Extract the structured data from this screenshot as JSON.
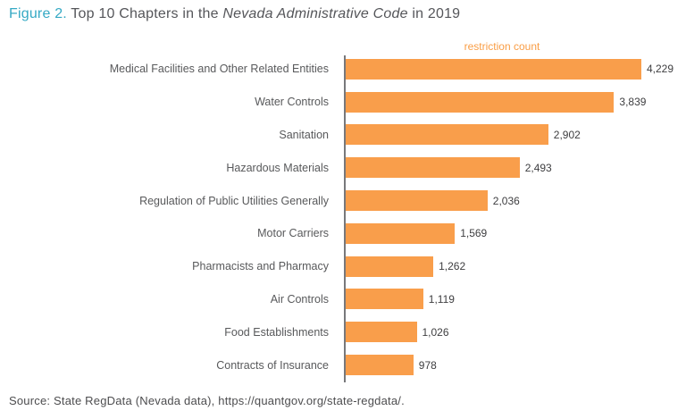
{
  "title": {
    "prefix": "Figure 2.",
    "before_italic": " Top 10 Chapters in the ",
    "italic": "Nevada Administrative Code",
    "after_italic": " in 2019"
  },
  "axis_label": "restriction count",
  "source": "Source: State RegData (Nevada data), https://quantgov.org/state-regdata/.",
  "colors": {
    "bar_orange": "#f99e4b",
    "accent_teal": "#35a9c4",
    "axis_label_orange": "#f99d45",
    "title_gray": "#55565a",
    "category_gray": "#58595b",
    "value_dark": "#3e3e40",
    "axis_line_gray": "#77787b"
  },
  "chart_data": {
    "type": "bar",
    "orientation": "horizontal",
    "title": "Top 10 Chapters in the Nevada Administrative Code in 2019",
    "xlabel": "restriction count",
    "ylabel": "",
    "grid": false,
    "legend": "none",
    "xlim": [
      0,
      4229
    ],
    "categories": [
      "Medical Facilities and Other Related Entities",
      "Water Controls",
      "Sanitation",
      "Hazardous Materials",
      "Regulation of Public Utilities Generally",
      "Motor Carriers",
      "Pharmacists and Pharmacy",
      "Air Controls",
      "Food Establishments",
      "Contracts of Insurance"
    ],
    "values": [
      4229,
      3839,
      2902,
      2493,
      2036,
      1569,
      1262,
      1119,
      1026,
      978
    ],
    "value_labels": [
      "4,229",
      "3,839",
      "2,902",
      "2,493",
      "2,036",
      "1,569",
      "1,262",
      "1,119",
      "1,026",
      "978"
    ]
  }
}
